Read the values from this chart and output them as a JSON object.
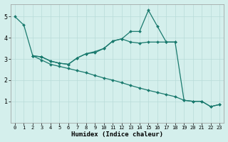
{
  "xlabel": "Humidex (Indice chaleur)",
  "background_color": "#d4efec",
  "line_color": "#1a7a6e",
  "grid_color": "#b8dbd8",
  "xlim": [
    -0.5,
    23.5
  ],
  "ylim": [
    0,
    5.6
  ],
  "yticks": [
    1,
    2,
    3,
    4,
    5
  ],
  "xticks": [
    0,
    1,
    2,
    3,
    4,
    5,
    6,
    7,
    8,
    9,
    10,
    11,
    12,
    13,
    14,
    15,
    16,
    17,
    18,
    19,
    20,
    21,
    22,
    23
  ],
  "line_a_x": [
    0,
    1,
    2,
    3,
    4,
    5,
    6,
    7,
    8,
    9,
    10,
    11,
    12,
    13,
    14,
    15,
    16,
    17,
    18,
    19,
    20,
    21,
    22,
    23
  ],
  "line_a_y": [
    5.0,
    4.6,
    3.15,
    2.95,
    2.75,
    2.65,
    2.55,
    2.45,
    2.35,
    2.22,
    2.1,
    2.0,
    1.88,
    1.75,
    1.63,
    1.52,
    1.42,
    1.32,
    1.22,
    1.05,
    1.0,
    1.0,
    0.75,
    0.85
  ],
  "line_b_x": [
    2,
    3,
    4,
    5,
    6,
    7,
    8,
    9,
    10,
    11,
    12,
    13,
    14,
    15,
    16,
    17,
    18,
    19,
    20,
    21,
    22,
    23
  ],
  "line_b_y": [
    3.15,
    3.1,
    2.9,
    2.8,
    2.75,
    3.05,
    3.25,
    3.3,
    3.5,
    3.85,
    3.95,
    4.3,
    4.3,
    5.3,
    4.55,
    3.8,
    3.8,
    1.05,
    1.0,
    1.0,
    0.75,
    0.85
  ],
  "line_c_x": [
    2,
    3,
    4,
    5,
    6,
    7,
    8,
    9,
    10,
    11,
    12,
    13,
    14,
    15,
    16,
    17,
    18
  ],
  "line_c_y": [
    3.15,
    3.1,
    2.9,
    2.8,
    2.75,
    3.05,
    3.25,
    3.35,
    3.5,
    3.85,
    3.95,
    3.8,
    3.75,
    3.8,
    3.8,
    3.8,
    3.8
  ]
}
